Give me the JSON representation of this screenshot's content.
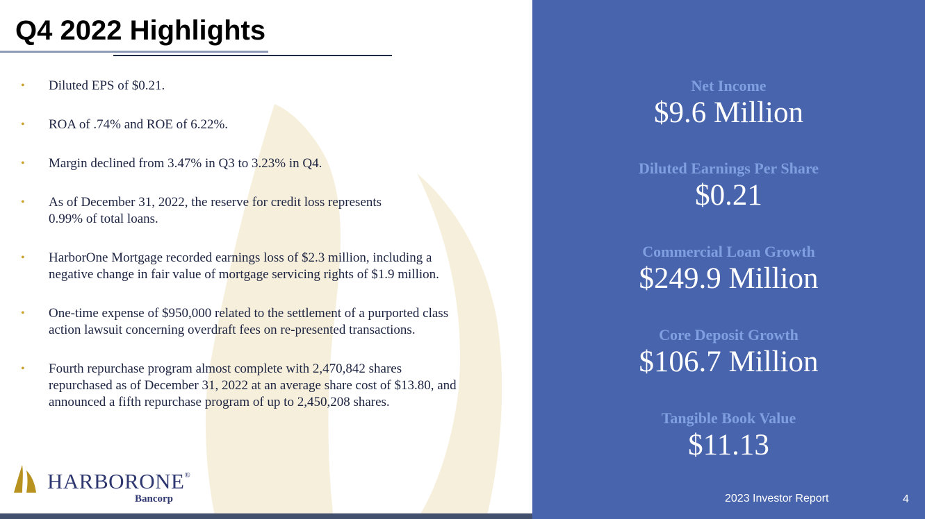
{
  "slide": {
    "title": "Q4 2022 Highlights",
    "bullets": [
      "Diluted EPS of $0.21.",
      "ROA of .74% and ROE of 6.22%.",
      "Margin declined from 3.47% in Q3 to 3.23% in Q4.",
      "As of December 31, 2022, the reserve for credit loss represents\n0.99% of total loans.",
      "HarborOne Mortgage recorded earnings loss of $2.3 million, including a\nnegative change in fair value of mortgage servicing rights of $1.9 million.",
      "One-time expense of $950,000 related to the settlement of a purported class\naction lawsuit concerning overdraft fees on re-presented transactions.",
      "Fourth repurchase program almost complete with 2,470,842 shares\nrepurchased as of December 31, 2022 at an average share cost of $13.80, and\nannounced a fifth repurchase program of up to 2,450,208 shares."
    ],
    "bullet_glyph": "•"
  },
  "logo": {
    "name": "HARBORONE",
    "registered": "®",
    "sub": "Bancorp"
  },
  "metrics": [
    {
      "label": "Net Income",
      "value": "$9.6 Million"
    },
    {
      "label": "Diluted Earnings Per Share",
      "value": "$0.21"
    },
    {
      "label": "Commercial Loan Growth",
      "value": "$249.9 Million"
    },
    {
      "label": "Core Deposit Growth",
      "value": "$106.7 Million"
    },
    {
      "label": "Tangible Book Value",
      "value": "$11.13"
    }
  ],
  "footer": {
    "report": "2023 Investor Report",
    "page": "4"
  },
  "colors": {
    "panel": "#4864ad",
    "metric_label": "#7f9fe0",
    "bullet_dot": "#c9a227",
    "text": "#1c2340",
    "watermark": "#f6efdc"
  }
}
